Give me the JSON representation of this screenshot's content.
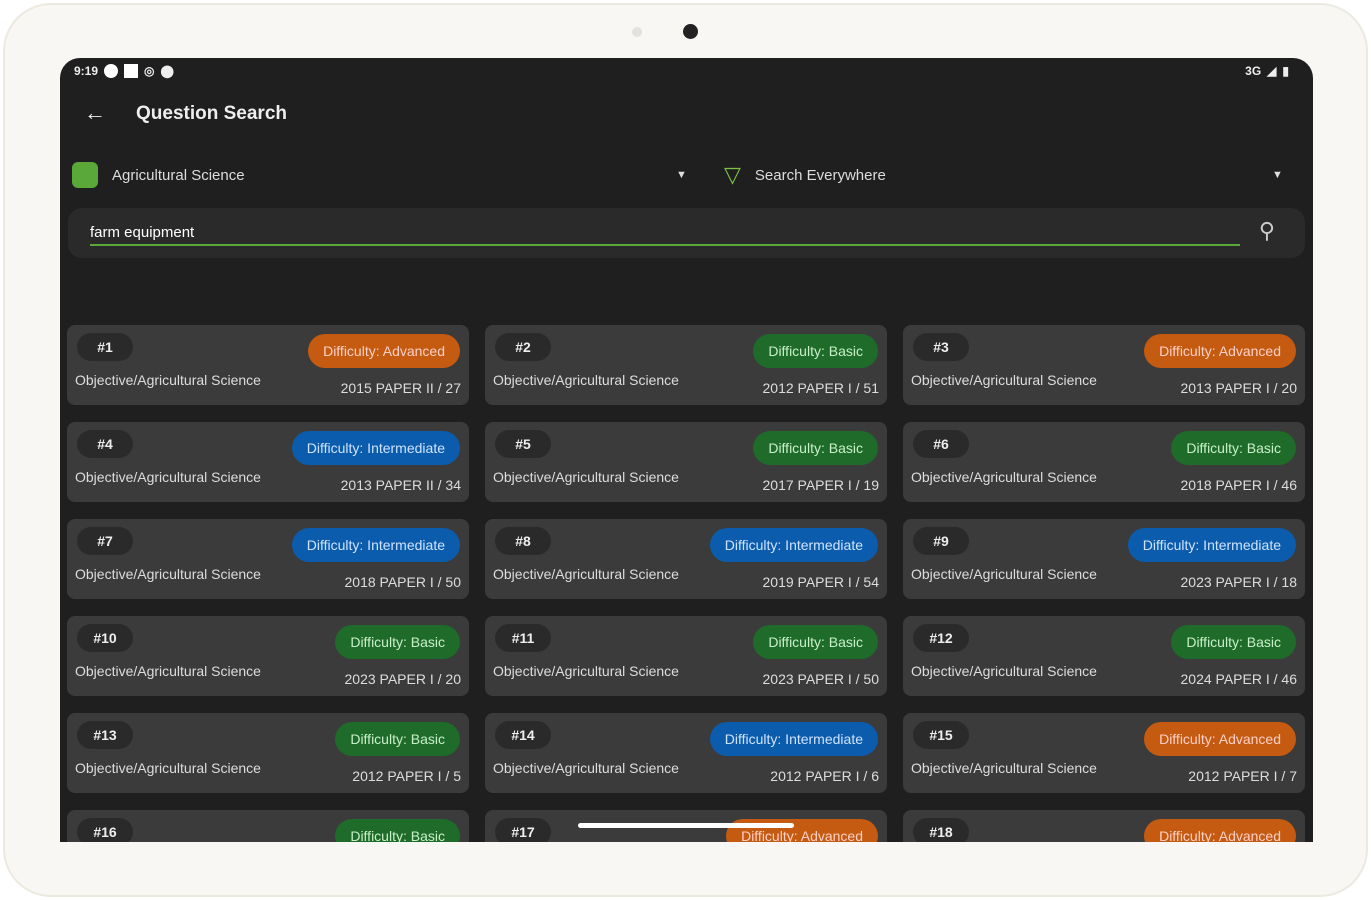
{
  "status_bar": {
    "time": "9:19",
    "network": "3G"
  },
  "header": {
    "title": "Question Search"
  },
  "subject_select": {
    "value": "Agricultural Science"
  },
  "scope_select": {
    "value": "Search Everywhere"
  },
  "search": {
    "value": "farm equipment"
  },
  "colors": {
    "advanced": "#c55a11",
    "basic": "#1e6b2a",
    "intermediate": "#0b5cad",
    "accent": "#5aa83a"
  },
  "results": [
    {
      "num": "#1",
      "difficulty": "Advanced",
      "label": "Difficulty: Advanced",
      "category": "Objective/Agricultural Science",
      "paper": "2015 PAPER II / 27"
    },
    {
      "num": "#2",
      "difficulty": "Basic",
      "label": "Difficulty: Basic",
      "category": "Objective/Agricultural Science",
      "paper": "2012 PAPER I / 51"
    },
    {
      "num": "#3",
      "difficulty": "Advanced",
      "label": "Difficulty: Advanced",
      "category": "Objective/Agricultural Science",
      "paper": "2013 PAPER I / 20"
    },
    {
      "num": "#4",
      "difficulty": "Intermediate",
      "label": "Difficulty: Intermediate",
      "category": "Objective/Agricultural Science",
      "paper": "2013 PAPER II / 34"
    },
    {
      "num": "#5",
      "difficulty": "Basic",
      "label": "Difficulty: Basic",
      "category": "Objective/Agricultural Science",
      "paper": "2017 PAPER I / 19"
    },
    {
      "num": "#6",
      "difficulty": "Basic",
      "label": "Difficulty: Basic",
      "category": "Objective/Agricultural Science",
      "paper": "2018 PAPER I / 46"
    },
    {
      "num": "#7",
      "difficulty": "Intermediate",
      "label": "Difficulty: Intermediate",
      "category": "Objective/Agricultural Science",
      "paper": "2018 PAPER I / 50"
    },
    {
      "num": "#8",
      "difficulty": "Intermediate",
      "label": "Difficulty: Intermediate",
      "category": "Objective/Agricultural Science",
      "paper": "2019 PAPER I / 54"
    },
    {
      "num": "#9",
      "difficulty": "Intermediate",
      "label": "Difficulty: Intermediate",
      "category": "Objective/Agricultural Science",
      "paper": "2023 PAPER I / 18"
    },
    {
      "num": "#10",
      "difficulty": "Basic",
      "label": "Difficulty: Basic",
      "category": "Objective/Agricultural Science",
      "paper": "2023 PAPER I / 20"
    },
    {
      "num": "#11",
      "difficulty": "Basic",
      "label": "Difficulty: Basic",
      "category": "Objective/Agricultural Science",
      "paper": "2023 PAPER I / 50"
    },
    {
      "num": "#12",
      "difficulty": "Basic",
      "label": "Difficulty: Basic",
      "category": "Objective/Agricultural Science",
      "paper": "2024 PAPER I / 46"
    },
    {
      "num": "#13",
      "difficulty": "Basic",
      "label": "Difficulty: Basic",
      "category": "Objective/Agricultural Science",
      "paper": "2012 PAPER I / 5"
    },
    {
      "num": "#14",
      "difficulty": "Intermediate",
      "label": "Difficulty: Intermediate",
      "category": "Objective/Agricultural Science",
      "paper": "2012 PAPER I / 6"
    },
    {
      "num": "#15",
      "difficulty": "Advanced",
      "label": "Difficulty: Advanced",
      "category": "Objective/Agricultural Science",
      "paper": "2012 PAPER I / 7"
    },
    {
      "num": "#16",
      "difficulty": "Basic",
      "label": "Difficulty: Basic"
    },
    {
      "num": "#17",
      "difficulty": "Advanced",
      "label": "Difficulty: Advanced"
    },
    {
      "num": "#18",
      "difficulty": "Advanced",
      "label": "Difficulty: Advanced"
    }
  ]
}
